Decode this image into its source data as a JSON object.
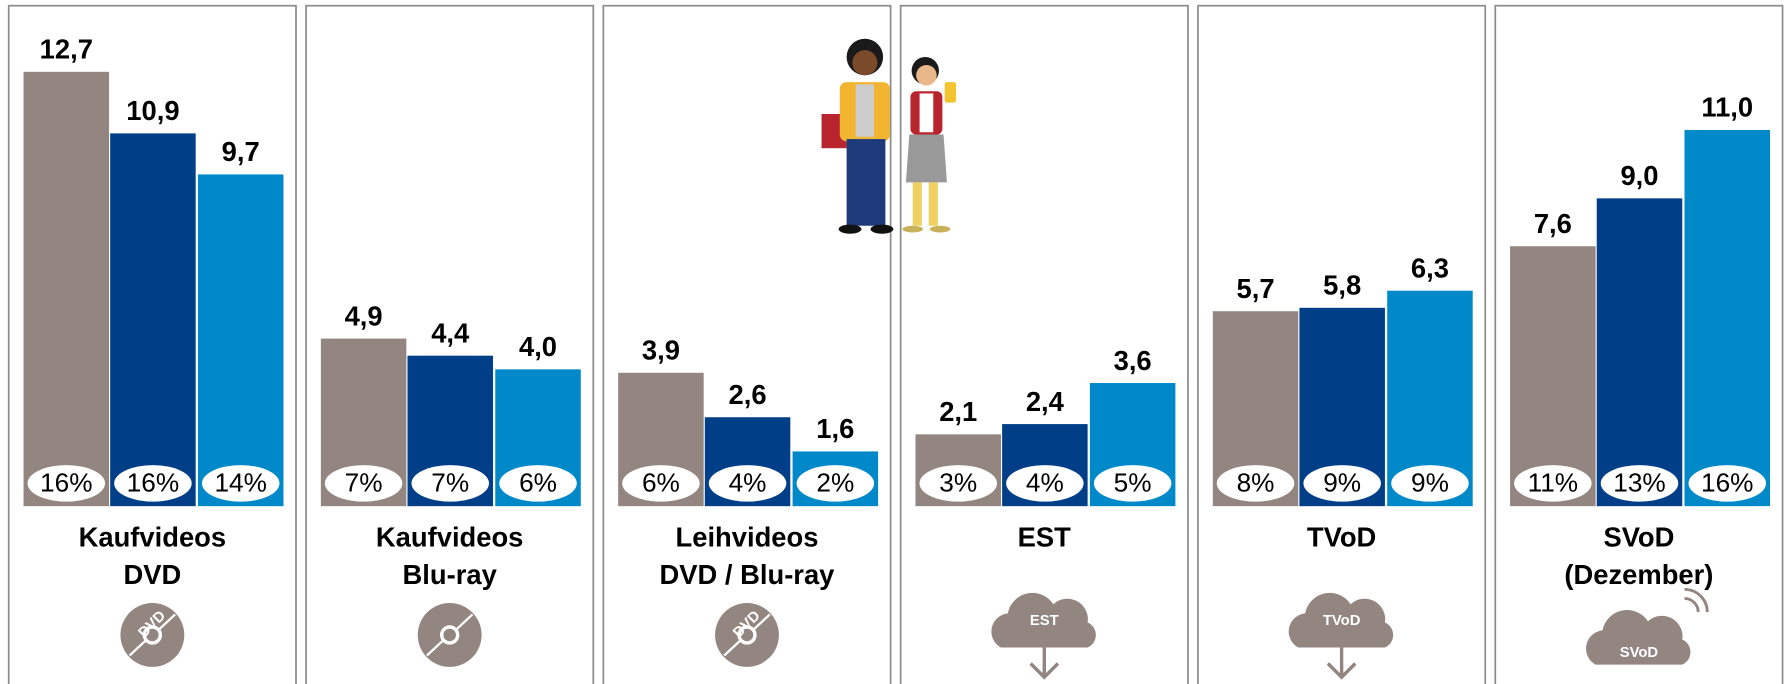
{
  "chart_data": {
    "type": "bar",
    "categories": [
      [
        "Kaufvideos",
        "DVD"
      ],
      [
        "Kaufvideos",
        "Blu-ray"
      ],
      [
        "Leihvideos",
        "DVD / Blu-ray"
      ],
      [
        "EST"
      ],
      [
        "TVoD"
      ],
      [
        "SVoD",
        "(Dezember)"
      ]
    ],
    "icon_labels": [
      "DVD",
      null,
      "DVD",
      "EST",
      "TVoD",
      "SVoD"
    ],
    "ylim": [
      0,
      14.8
    ],
    "series": [
      {
        "color": "#938580",
        "values": [
          12.7,
          4.9,
          3.9,
          2.1,
          5.7,
          7.6
        ],
        "value_labels": [
          "12,7",
          "4,9",
          "3,9",
          "2,1",
          "5,7",
          "7,6"
        ],
        "shares": [
          16,
          7,
          6,
          3,
          8,
          11
        ],
        "share_labels": [
          "16%",
          "7%",
          "6%",
          "3%",
          "8%",
          "11%"
        ]
      },
      {
        "color": "#003f87",
        "values": [
          10.9,
          4.4,
          2.6,
          2.4,
          5.8,
          9.0
        ],
        "value_labels": [
          "10,9",
          "4,4",
          "2,6",
          "2,4",
          "5,8",
          "9,0"
        ],
        "shares": [
          16,
          7,
          4,
          4,
          9,
          13
        ],
        "share_labels": [
          "16%",
          "7%",
          "4%",
          "4%",
          "9%",
          "13%"
        ]
      },
      {
        "color": "#0089c9",
        "values": [
          9.7,
          4.0,
          1.6,
          3.6,
          6.3,
          11.0
        ],
        "value_labels": [
          "9,7",
          "4,0",
          "1,6",
          "3,6",
          "6,3",
          "11,0"
        ],
        "shares": [
          14,
          6,
          2,
          5,
          9,
          16
        ],
        "share_labels": [
          "14%",
          "6%",
          "2%",
          "5%",
          "9%",
          "16%"
        ]
      }
    ]
  }
}
